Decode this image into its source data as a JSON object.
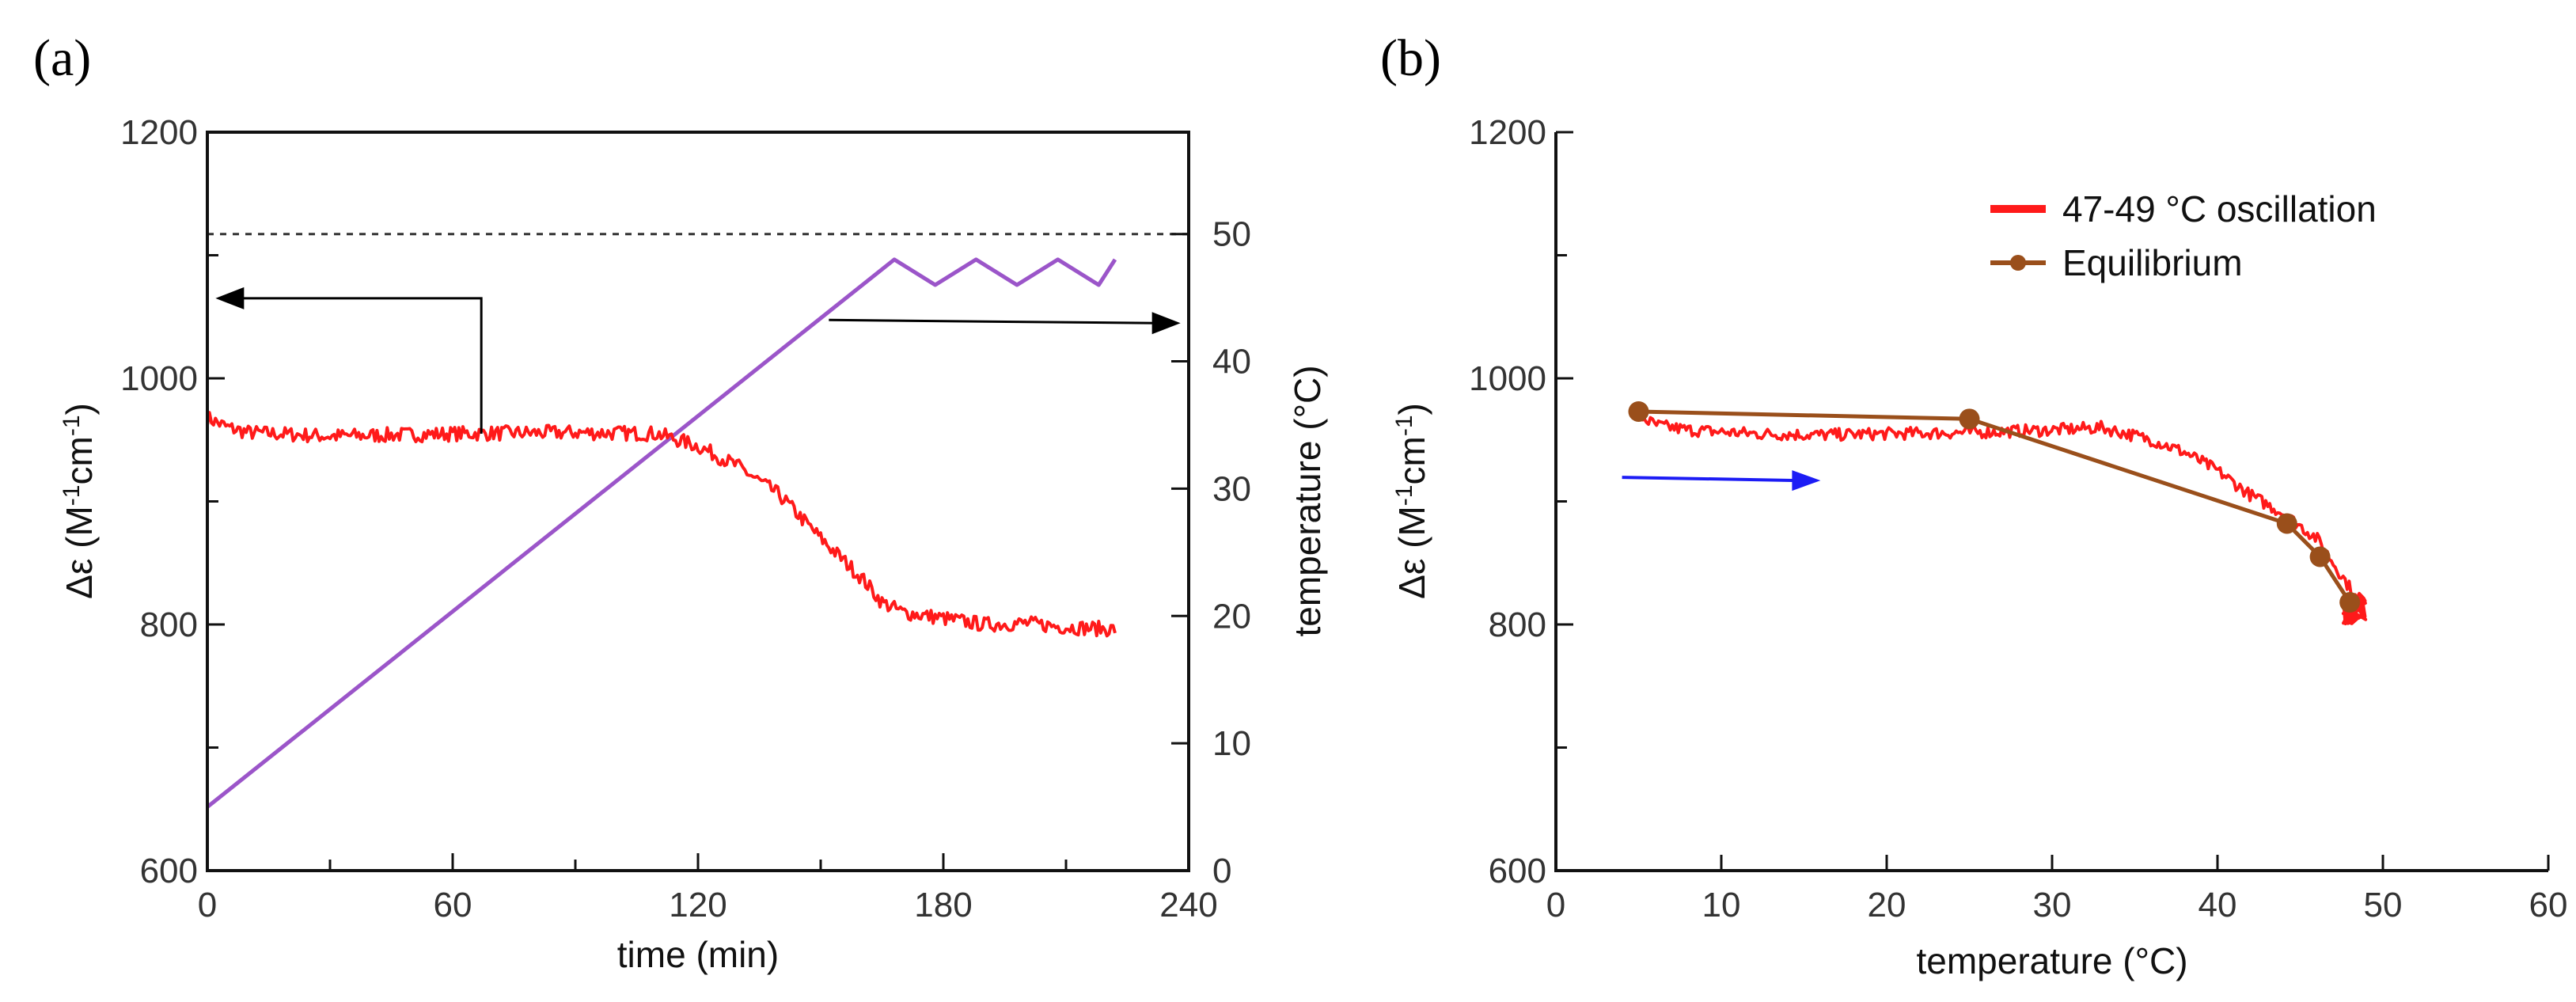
{
  "colors": {
    "cd_signal": "#ff1a1a",
    "temperature": "#9b55c9",
    "equilibrium": "#9a4f1b",
    "direction_arrow": "#1c1cf5",
    "axis": "#111111",
    "reference_line": "#333333"
  },
  "chart_data": [
    {
      "panel": "a",
      "panel_label": "(a)",
      "type": "line",
      "xlabel": "time (min)",
      "ylabel_left": {
        "prefix": "Δε (M",
        "sup1": "-1",
        "mid": "cm",
        "sup2": "-1",
        "suffix": ")"
      },
      "ylabel_right": "temperature (°C)",
      "xlim": [
        0,
        240
      ],
      "ylim_left": [
        600,
        1200
      ],
      "ylim_right": [
        0,
        58
      ],
      "x_ticks": [
        0,
        60,
        120,
        180,
        240
      ],
      "x_tick_labels": [
        "0",
        "60",
        "120",
        "180",
        "240"
      ],
      "x_minor_ticks": [
        30,
        90,
        150,
        210
      ],
      "y_left_ticks": [
        600,
        800,
        1000,
        1200
      ],
      "y_left_tick_labels": [
        "600",
        "800",
        "1000",
        "1200"
      ],
      "y_left_minor_ticks": [
        700,
        900,
        1100
      ],
      "y_right_ticks": [
        0,
        10,
        20,
        30,
        40,
        50
      ],
      "y_right_tick_labels": [
        "0",
        "10",
        "20",
        "30",
        "40",
        "50"
      ],
      "reference_line": {
        "axis": "right",
        "value": 50,
        "style": "dashed"
      },
      "annotations": [
        {
          "type": "arrow",
          "points_to": "left axis",
          "from": [
            67,
            955
          ],
          "corner_y": 1065,
          "to_x": 2
        },
        {
          "type": "arrow",
          "points_to": "right axis",
          "from_x": 152,
          "to_x": 238,
          "y_right": 43
        }
      ],
      "series": [
        {
          "name": "Δε",
          "axis": "left",
          "color": "#ff1a1a",
          "noise": 6,
          "x": [
            0,
            5,
            10,
            30,
            60,
            90,
            110,
            120,
            130,
            140,
            150,
            160,
            165,
            170,
            180,
            190,
            200,
            210,
            222
          ],
          "y": [
            968,
            960,
            956,
            953,
            955,
            956,
            955,
            945,
            928,
            905,
            870,
            838,
            818,
            810,
            805,
            800,
            801,
            798,
            796
          ]
        },
        {
          "name": "temperature",
          "axis": "right",
          "color": "#9b55c9",
          "x": [
            0,
            168,
            178,
            188,
            198,
            208,
            218,
            222
          ],
          "y": [
            5,
            48,
            46,
            48,
            46,
            48,
            46,
            48
          ]
        }
      ]
    },
    {
      "panel": "b",
      "panel_label": "(b)",
      "type": "line",
      "xlabel": "temperature (°C)",
      "ylabel": {
        "prefix": "Δε (M",
        "sup1": "-1",
        "mid": "cm",
        "sup2": "-1",
        "suffix": ")"
      },
      "xlim": [
        0,
        60
      ],
      "ylim": [
        600,
        1200
      ],
      "x_ticks": [
        0,
        10,
        20,
        30,
        40,
        50,
        60
      ],
      "x_tick_labels": [
        "0",
        "10",
        "20",
        "30",
        "40",
        "50",
        "60"
      ],
      "y_ticks": [
        600,
        800,
        1000,
        1200
      ],
      "y_tick_labels": [
        "600",
        "800",
        "1000",
        "1200"
      ],
      "y_minor_ticks": [
        700,
        900,
        1100
      ],
      "legend": {
        "position": "top-right",
        "entries": [
          "47-49 °C oscillation",
          "Equilibrium"
        ]
      },
      "annotations": [
        {
          "type": "arrow",
          "color": "#1c1cf5",
          "from": [
            4,
            917
          ],
          "to": [
            16,
            917
          ]
        }
      ],
      "series": [
        {
          "name": "47-49 °C oscillation",
          "color": "#ff1a1a",
          "noise": 5,
          "x": [
            5,
            6,
            8,
            12,
            16,
            20,
            25,
            30,
            33,
            36,
            38,
            40,
            42,
            44,
            46,
            47,
            48,
            48.6,
            49
          ],
          "y": [
            970,
            962,
            958,
            955,
            954,
            955,
            956,
            958,
            960,
            950,
            940,
            925,
            905,
            890,
            870,
            850,
            830,
            815,
            810
          ]
        },
        {
          "name": "Equilibrium",
          "color": "#9a4f1b",
          "markers": true,
          "x": [
            5,
            25,
            44.2,
            46.2,
            48
          ],
          "y": [
            973,
            967,
            882,
            855,
            818
          ]
        }
      ]
    }
  ]
}
